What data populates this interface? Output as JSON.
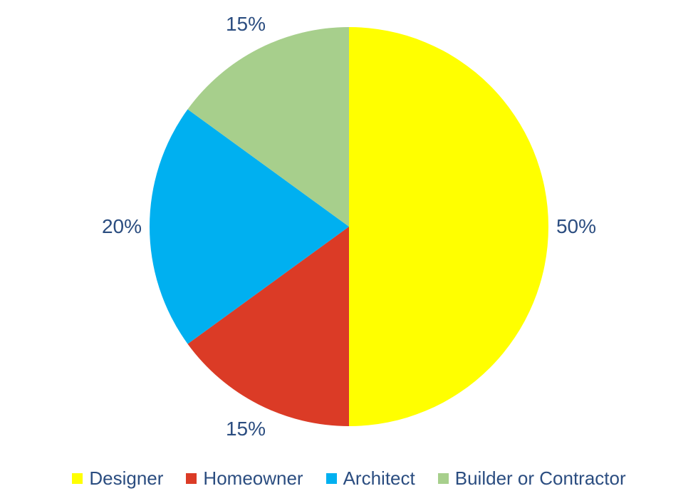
{
  "chart_data": {
    "type": "pie",
    "title": "",
    "legend_position": "bottom",
    "start_angle_deg": 0,
    "direction": "clockwise",
    "label_color": "#2B4D80",
    "background_color": "#FFFFFF",
    "slices": [
      {
        "name": "Designer",
        "value": 50,
        "label": "50%",
        "color": "#FFFF00"
      },
      {
        "name": "Homeowner",
        "value": 15,
        "label": "15%",
        "color": "#DB3B26"
      },
      {
        "name": "Architect",
        "value": 20,
        "label": "20%",
        "color": "#00B0F0"
      },
      {
        "name": "Builder or Contractor",
        "value": 15,
        "label": "15%",
        "color": "#A7CF8C"
      }
    ]
  }
}
